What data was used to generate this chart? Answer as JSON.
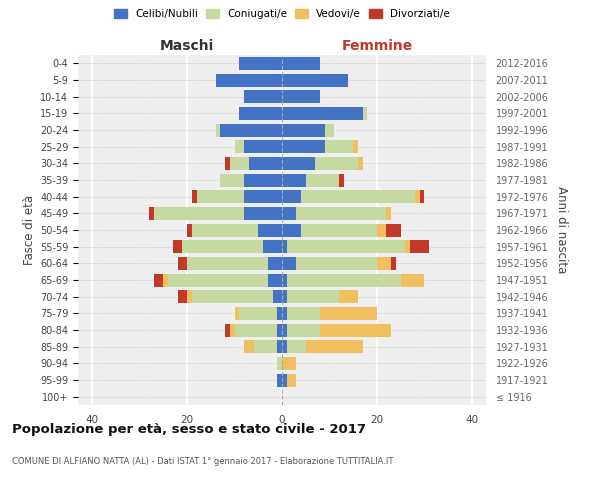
{
  "age_groups": [
    "100+",
    "95-99",
    "90-94",
    "85-89",
    "80-84",
    "75-79",
    "70-74",
    "65-69",
    "60-64",
    "55-59",
    "50-54",
    "45-49",
    "40-44",
    "35-39",
    "30-34",
    "25-29",
    "20-24",
    "15-19",
    "10-14",
    "5-9",
    "0-4"
  ],
  "birth_years": [
    "≤ 1916",
    "1917-1921",
    "1922-1926",
    "1927-1931",
    "1932-1936",
    "1937-1941",
    "1942-1946",
    "1947-1951",
    "1952-1956",
    "1957-1961",
    "1962-1966",
    "1967-1971",
    "1972-1976",
    "1977-1981",
    "1982-1986",
    "1987-1991",
    "1992-1996",
    "1997-2001",
    "2002-2006",
    "2007-2011",
    "2012-2016"
  ],
  "maschi": {
    "celibi": [
      0,
      1,
      0,
      1,
      1,
      1,
      2,
      3,
      3,
      4,
      5,
      8,
      8,
      8,
      7,
      8,
      13,
      9,
      8,
      14,
      9
    ],
    "coniugati": [
      0,
      0,
      1,
      5,
      9,
      8,
      17,
      21,
      17,
      17,
      14,
      19,
      10,
      5,
      4,
      2,
      1,
      0,
      0,
      0,
      0
    ],
    "vedovi": [
      0,
      0,
      0,
      2,
      1,
      1,
      1,
      1,
      0,
      0,
      0,
      0,
      0,
      0,
      0,
      0,
      0,
      0,
      0,
      0,
      0
    ],
    "divorziati": [
      0,
      0,
      0,
      0,
      1,
      0,
      2,
      2,
      2,
      2,
      1,
      1,
      1,
      0,
      1,
      0,
      0,
      0,
      0,
      0,
      0
    ]
  },
  "femmine": {
    "nubili": [
      0,
      1,
      0,
      1,
      1,
      1,
      1,
      1,
      3,
      1,
      4,
      3,
      4,
      5,
      7,
      9,
      9,
      17,
      8,
      14,
      8
    ],
    "coniugate": [
      0,
      0,
      0,
      4,
      7,
      7,
      11,
      24,
      17,
      25,
      16,
      19,
      24,
      7,
      9,
      6,
      2,
      1,
      0,
      0,
      0
    ],
    "vedove": [
      0,
      2,
      3,
      12,
      15,
      12,
      4,
      5,
      3,
      1,
      2,
      1,
      1,
      0,
      1,
      1,
      0,
      0,
      0,
      0,
      0
    ],
    "divorziate": [
      0,
      0,
      0,
      0,
      0,
      0,
      0,
      0,
      1,
      4,
      3,
      0,
      1,
      1,
      0,
      0,
      0,
      0,
      0,
      0,
      0
    ]
  },
  "colors": {
    "celibi": "#4472c4",
    "coniugati": "#c5d9a0",
    "vedovi": "#f0c060",
    "divorziati": "#c0392b"
  },
  "xlim": 43,
  "title": "Popolazione per età, sesso e stato civile - 2017",
  "subtitle": "COMUNE DI ALFIANO NATTA (AL) - Dati ISTAT 1° gennaio 2017 - Elaborazione TUTTITALIA.IT",
  "ylabel": "Fasce di età",
  "ylabel_right": "Anni di nascita",
  "xlabel_left": "Maschi",
  "xlabel_right": "Femmine",
  "legend_labels": [
    "Celibi/Nubili",
    "Coniugati/e",
    "Vedovi/e",
    "Divorziati/e"
  ],
  "bg_color": "#efefef"
}
